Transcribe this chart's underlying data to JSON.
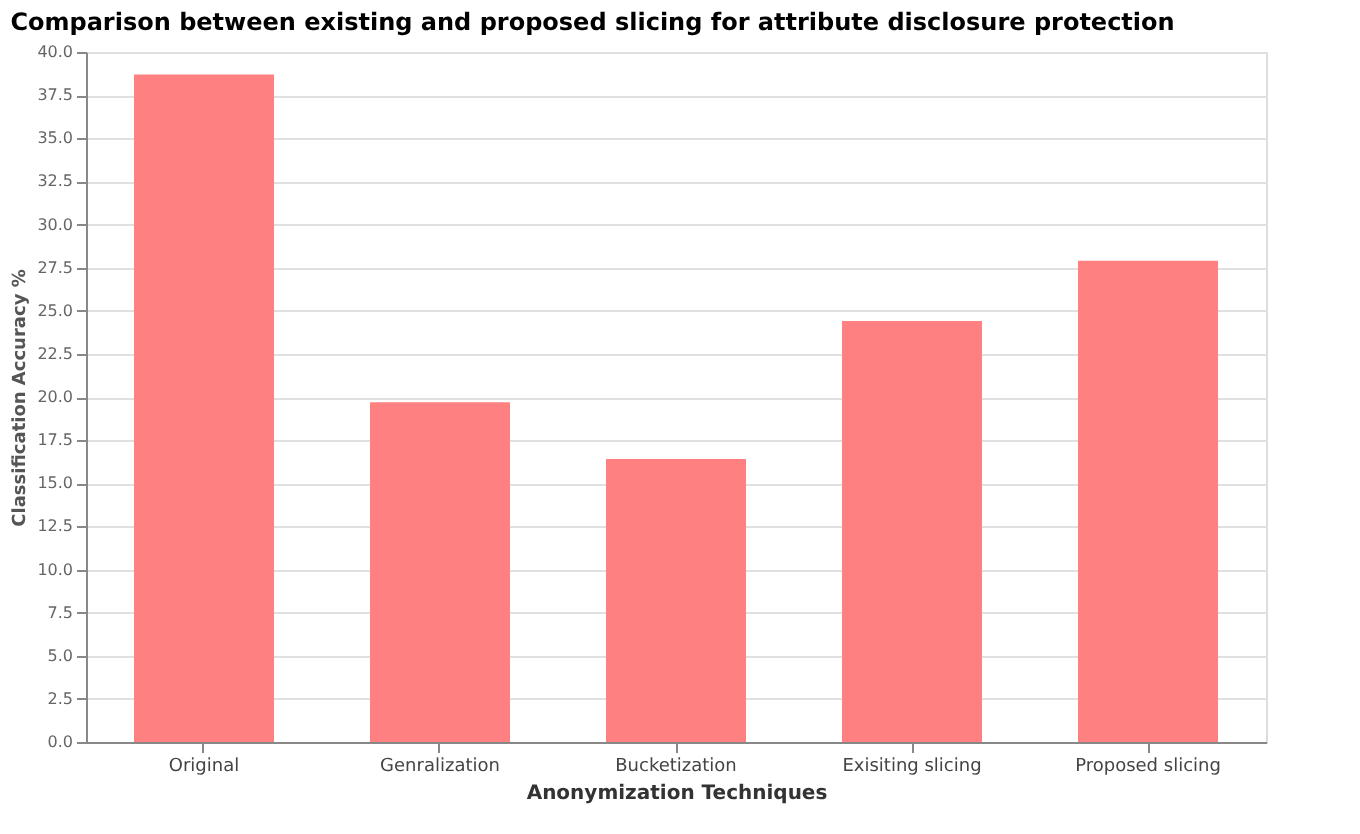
{
  "chart_data": {
    "type": "bar",
    "title": "Comparison between existing and proposed slicing for attribute disclosure protection",
    "xlabel": "Anonymization Techniques",
    "ylabel": "Classification Accuracy %",
    "categories": [
      "Original",
      "Genralization",
      "Bucketization",
      "Exisiting slicing",
      "Proposed slicing"
    ],
    "values": [
      38.7,
      19.7,
      16.4,
      24.4,
      27.9
    ],
    "color": "#ff8080",
    "ylim": [
      0,
      40
    ],
    "yticks": [
      {
        "value": 0,
        "label": "0.0"
      },
      {
        "value": 2.5,
        "label": "2.5"
      },
      {
        "value": 5,
        "label": "5.0"
      },
      {
        "value": 7.5,
        "label": "7.5"
      },
      {
        "value": 10,
        "label": "10.0"
      },
      {
        "value": 12.5,
        "label": "12.5"
      },
      {
        "value": 15,
        "label": "15.0"
      },
      {
        "value": 17.5,
        "label": "17.5"
      },
      {
        "value": 20,
        "label": "20.0"
      },
      {
        "value": 22.5,
        "label": "22.5"
      },
      {
        "value": 25,
        "label": "25.0"
      },
      {
        "value": 27.5,
        "label": "27.5"
      },
      {
        "value": 30,
        "label": "30.0"
      },
      {
        "value": 32.5,
        "label": "32.5"
      },
      {
        "value": 35,
        "label": "35.0"
      },
      {
        "value": 37.5,
        "label": "37.5"
      },
      {
        "value": 40,
        "label": "40.0"
      }
    ],
    "grid": "y"
  }
}
